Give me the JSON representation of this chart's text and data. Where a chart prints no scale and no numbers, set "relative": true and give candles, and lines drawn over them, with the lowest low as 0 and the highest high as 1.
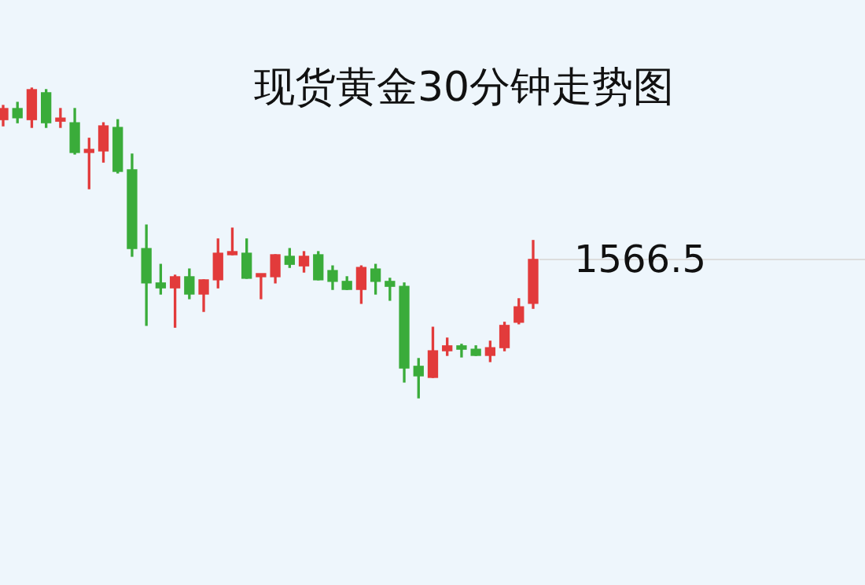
{
  "chart_data": {
    "type": "candlestick",
    "title": "现货黄金30分钟走势图",
    "relative": true,
    "categories": [
      null,
      null,
      null,
      null,
      null,
      null,
      null,
      null,
      null,
      null,
      null,
      null,
      null,
      null,
      null,
      null,
      null,
      null,
      null,
      null,
      null,
      null,
      null,
      null,
      null,
      null,
      null,
      null,
      null,
      null,
      null,
      null,
      null,
      null,
      null,
      null,
      null,
      null
    ],
    "ohlc": [
      [
        0.898,
        0.944,
        0.878,
        0.934
      ],
      [
        0.934,
        0.954,
        0.888,
        0.904
      ],
      [
        0.898,
        1.0,
        0.873,
        0.995
      ],
      [
        0.985,
        0.995,
        0.873,
        0.888
      ],
      [
        0.893,
        0.934,
        0.873,
        0.898
      ],
      [
        0.888,
        0.934,
        0.787,
        0.792
      ],
      [
        0.792,
        0.838,
        0.675,
        0.797
      ],
      [
        0.797,
        0.888,
        0.761,
        0.878
      ],
      [
        0.873,
        0.898,
        0.726,
        0.731
      ],
      [
        0.736,
        0.787,
        0.457,
        0.482
      ],
      [
        0.482,
        0.558,
        0.234,
        0.371
      ],
      [
        0.371,
        0.431,
        0.335,
        0.355
      ],
      [
        0.355,
        0.396,
        0.228,
        0.391
      ],
      [
        0.391,
        0.416,
        0.32,
        0.335
      ],
      [
        0.335,
        0.381,
        0.279,
        0.381
      ],
      [
        0.381,
        0.513,
        0.355,
        0.467
      ],
      [
        0.462,
        0.548,
        0.462,
        0.467
      ],
      [
        0.467,
        0.513,
        0.386,
        0.386
      ],
      [
        0.391,
        0.396,
        0.32,
        0.396
      ],
      [
        0.391,
        0.462,
        0.371,
        0.462
      ],
      [
        0.457,
        0.482,
        0.421,
        0.431
      ],
      [
        0.426,
        0.472,
        0.406,
        0.457
      ],
      [
        0.462,
        0.472,
        0.381,
        0.381
      ],
      [
        0.411,
        0.426,
        0.35,
        0.376
      ],
      [
        0.376,
        0.391,
        0.35,
        0.35
      ],
      [
        0.35,
        0.426,
        0.305,
        0.421
      ],
      [
        0.416,
        0.431,
        0.335,
        0.376
      ],
      [
        0.376,
        0.386,
        0.315,
        0.36
      ],
      [
        0.36,
        0.371,
        0.051,
        0.096
      ],
      [
        0.102,
        0.127,
        0,
        0.071
      ],
      [
        0.066,
        0.228,
        0.066,
        0.152
      ],
      [
        0.152,
        0.193,
        0.137,
        0.168
      ],
      [
        0.168,
        0.173,
        0.132,
        0.157
      ],
      [
        0.157,
        0.168,
        0.137,
        0.137
      ],
      [
        0.137,
        0.183,
        0.117,
        0.162
      ],
      [
        0.162,
        0.244,
        0.152,
        0.234
      ],
      [
        0.244,
        0.32,
        0.239,
        0.294
      ],
      [
        0.305,
        0.508,
        0.289,
        0.447
      ]
    ],
    "colors": [
      "#e23b3b",
      "#3aac3a",
      "#e23b3b",
      "#3aac3a",
      "#e23b3b",
      "#3aac3a",
      "#e23b3b",
      "#e23b3b",
      "#3aac3a",
      "#3aac3a",
      "#3aac3a",
      "#3aac3a",
      "#e23b3b",
      "#3aac3a",
      "#e23b3b",
      "#e23b3b",
      "#e23b3b",
      "#3aac3a",
      "#e23b3b",
      "#e23b3b",
      "#3aac3a",
      "#e23b3b",
      "#3aac3a",
      "#3aac3a",
      "#3aac3a",
      "#e23b3b",
      "#3aac3a",
      "#3aac3a",
      "#3aac3a",
      "#3aac3a",
      "#e23b3b",
      "#e23b3b",
      "#3aac3a",
      "#3aac3a",
      "#e23b3b",
      "#e23b3b",
      "#e23b3b",
      "#e23b3b"
    ],
    "annotations": [
      "1566.5"
    ]
  }
}
